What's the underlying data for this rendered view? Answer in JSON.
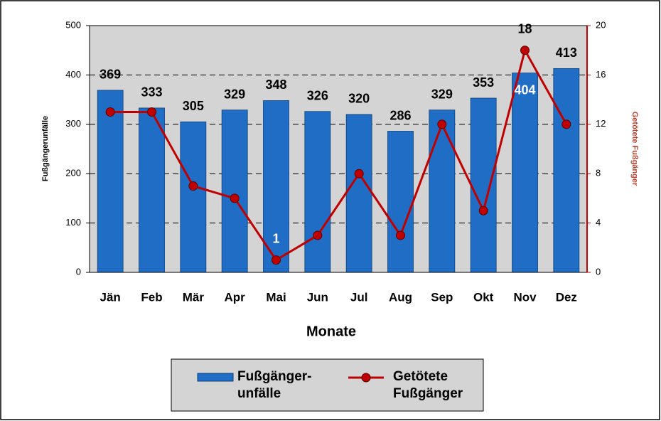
{
  "chart_data": {
    "type": "bar_line",
    "categories": [
      "Jän",
      "Feb",
      "Mär",
      "Apr",
      "Mai",
      "Jun",
      "Jul",
      "Aug",
      "Sep",
      "Okt",
      "Nov",
      "Dez"
    ],
    "xlabel": "Monate",
    "ylabel": "Fußgängerunfälle",
    "y2label": "Getötete Fußgänger",
    "ylim": [
      0,
      500
    ],
    "yticks": [
      0,
      100,
      200,
      300,
      400,
      500
    ],
    "y2lim": [
      0,
      20
    ],
    "y2ticks": [
      0,
      4,
      8,
      12,
      16,
      20
    ],
    "grid": true,
    "series": [
      {
        "name": "Fußgänger-\nunfälle",
        "type": "bar",
        "color": "#1f6dc4",
        "values": [
          369,
          333,
          305,
          329,
          348,
          326,
          320,
          286,
          329,
          353,
          404,
          413
        ]
      },
      {
        "name": "Getötete\nFußgänger",
        "type": "line",
        "axis": "y2",
        "color": "#c00000",
        "values": [
          13,
          13,
          7,
          6,
          1,
          3,
          8,
          3,
          12,
          5,
          18,
          12
        ],
        "value_labels": [
          null,
          null,
          null,
          null,
          "1",
          null,
          null,
          null,
          null,
          null,
          "18",
          null
        ]
      }
    ]
  }
}
